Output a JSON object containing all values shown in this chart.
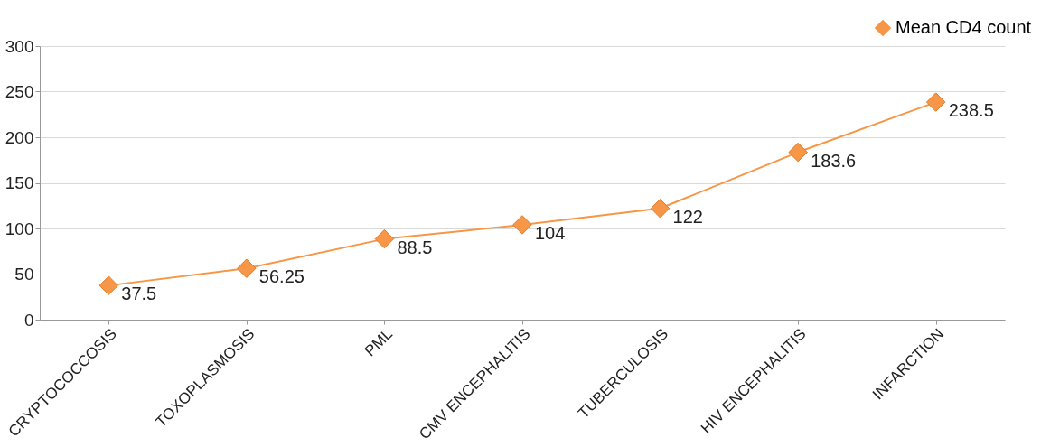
{
  "chart_data": {
    "type": "line",
    "categories": [
      "CRYPTOCOCCOSIS",
      "TOXOPLASMOSIS",
      "PML",
      "CMV ENCEPHALITIS",
      "TUBERCULOSIS",
      "HIV ENCEPHALITIS",
      "INFARCTION"
    ],
    "series": [
      {
        "name": "Mean CD4 count",
        "color": "#f79646",
        "values": [
          37.5,
          56.25,
          88.5,
          104,
          122,
          183.6,
          238.5
        ]
      }
    ],
    "ylim": [
      0,
      300
    ],
    "yticks": [
      0,
      50,
      100,
      150,
      200,
      250,
      300
    ],
    "grid": "y",
    "legend": "top right",
    "marker": "diamond",
    "line_style": "solid",
    "data_labels": true
  }
}
